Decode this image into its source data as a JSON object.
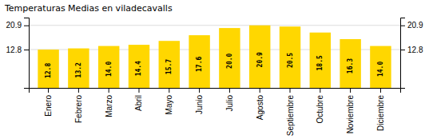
{
  "chart_data": {
    "type": "bar",
    "title": "Temperaturas Medias en viladecavalls",
    "categories": [
      "Enero",
      "Febrero",
      "Marzo",
      "Abril",
      "Mayo",
      "Junio",
      "Julio",
      "Agosto",
      "Septiembre",
      "Octubre",
      "Noviembre",
      "Diciembre"
    ],
    "values": [
      12.8,
      13.2,
      14.0,
      14.4,
      15.7,
      17.6,
      20.0,
      20.9,
      20.5,
      18.5,
      16.3,
      14.0
    ],
    "value_labels": [
      "12.8",
      "13.2",
      "14.0",
      "14.4",
      "15.7",
      "17.6",
      "20.0",
      "20.9",
      "20.5",
      "18.5",
      "16.3",
      "14.0"
    ],
    "data_labels": true,
    "color": "#FFD700",
    "ylim": [
      0,
      23.5
    ],
    "yticks": [
      12.8,
      20.9
    ],
    "grid": true
  }
}
